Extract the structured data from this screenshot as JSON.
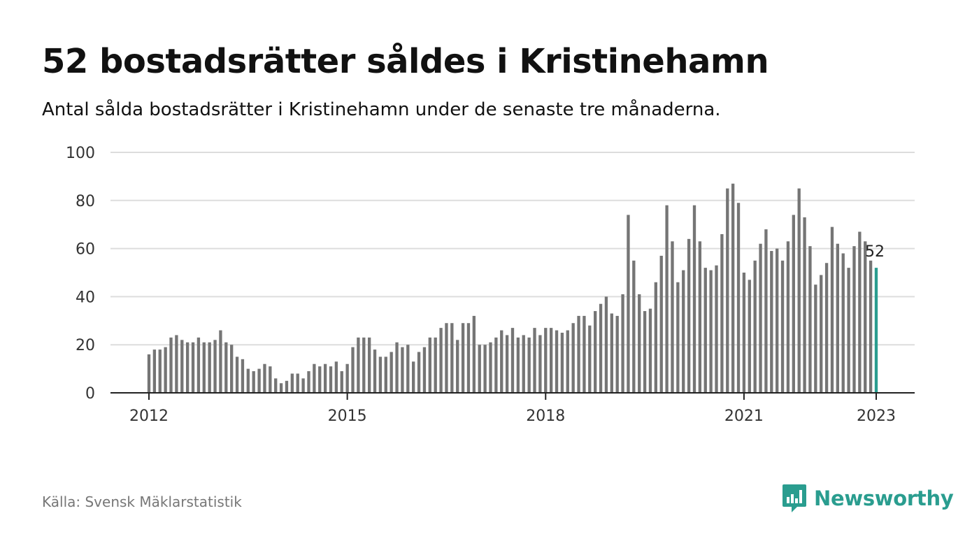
{
  "title": "52 bostadsrätter såldes i Kristinehamn",
  "subtitle": "Antal sålda bostadsrätter i Kristinehamn under de senaste tre månaderna.",
  "source": "Källa: Svensk Mäklarstatistik",
  "brand": {
    "name": "Newsworthy",
    "color": "#2a9d8f",
    "icon": "newsworthy-logo-icon"
  },
  "colors": {
    "bar": "#757575",
    "highlight": "#2a9d8f",
    "grid": "#dddddd",
    "axis": "#222222"
  },
  "chart_data": {
    "type": "bar",
    "title": "52 bostadsrätter såldes i Kristinehamn",
    "subtitle": "Antal sålda bostadsrätter i Kristinehamn under de senaste tre månaderna.",
    "xlabel": "",
    "ylabel": "",
    "ylim": [
      0,
      100
    ],
    "yticks": [
      0,
      20,
      40,
      60,
      80,
      100
    ],
    "xticks": [
      "2012",
      "2015",
      "2018",
      "2021",
      "2023"
    ],
    "x_start": "2012-01",
    "x_end": "2023-01",
    "grid": true,
    "highlight_last": true,
    "last_value_label": "52",
    "values": [
      16,
      18,
      18,
      19,
      23,
      24,
      22,
      21,
      21,
      23,
      21,
      21,
      22,
      26,
      21,
      20,
      15,
      14,
      10,
      9,
      10,
      12,
      11,
      6,
      4,
      5,
      8,
      8,
      6,
      9,
      12,
      11,
      12,
      11,
      13,
      9,
      12,
      19,
      23,
      23,
      23,
      18,
      15,
      15,
      17,
      21,
      19,
      20,
      13,
      17,
      19,
      23,
      23,
      27,
      29,
      29,
      22,
      29,
      29,
      32,
      20,
      20,
      21,
      23,
      26,
      24,
      27,
      23,
      24,
      23,
      27,
      24,
      27,
      27,
      26,
      25,
      26,
      29,
      32,
      32,
      28,
      34,
      37,
      40,
      33,
      32,
      41,
      74,
      55,
      41,
      34,
      35,
      46,
      57,
      78,
      63,
      46,
      51,
      64,
      78,
      63,
      52,
      51,
      53,
      66,
      85,
      87,
      79,
      50,
      47,
      55,
      62,
      68,
      59,
      60,
      55,
      63,
      74,
      85,
      73,
      61,
      45,
      49,
      54,
      69,
      62,
      58,
      52,
      61,
      67,
      63,
      55,
      52
    ]
  }
}
